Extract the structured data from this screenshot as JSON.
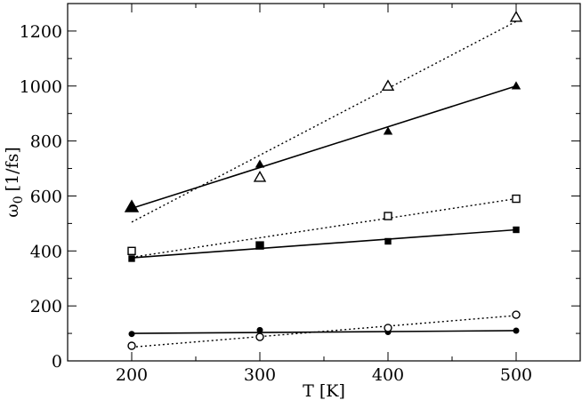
{
  "chart_data": {
    "type": "scatter",
    "title": "",
    "xlabel": "T [K]",
    "ylabel": "ω",
    "ylabel_sub": "0",
    "ylabel_unit": "[1/fs]",
    "xlim": [
      150,
      550
    ],
    "ylim": [
      0,
      1300
    ],
    "xticks": [
      200,
      300,
      400,
      500
    ],
    "yticks": [
      0,
      200,
      400,
      600,
      800,
      1000,
      1200
    ],
    "grid": false,
    "legend": "none",
    "series": [
      {
        "marker": "triangle",
        "filled": true,
        "line": "solid",
        "x": [
          200,
          300,
          400,
          500
        ],
        "y": [
          560,
          715,
          835,
          1000
        ],
        "fit": {
          "x": [
            200,
            500
          ],
          "y": [
            555,
            1000
          ]
        }
      },
      {
        "marker": "triangle",
        "filled": false,
        "line": "dotted",
        "x": [
          300,
          400,
          500
        ],
        "y": [
          668,
          1000,
          1250
        ],
        "fit": {
          "x": [
            200,
            500
          ],
          "y": [
            505,
            1235
          ]
        }
      },
      {
        "marker": "square",
        "filled": true,
        "line": "solid",
        "x": [
          200,
          300,
          400,
          500
        ],
        "y": [
          372,
          420,
          435,
          477
        ],
        "fit": {
          "x": [
            200,
            500
          ],
          "y": [
            375,
            477
          ]
        }
      },
      {
        "marker": "square",
        "filled": false,
        "line": "dotted",
        "x": [
          200,
          400,
          500
        ],
        "y": [
          400,
          527,
          590
        ],
        "fit": {
          "x": [
            200,
            500
          ],
          "y": [
            377,
            590
          ]
        }
      },
      {
        "marker": "circle",
        "filled": true,
        "line": "solid",
        "x": [
          200,
          300,
          400,
          500
        ],
        "y": [
          98,
          112,
          105,
          110
        ],
        "fit": {
          "x": [
            200,
            500
          ],
          "y": [
            100,
            110
          ]
        }
      },
      {
        "marker": "circle",
        "filled": false,
        "line": "dotted",
        "x": [
          200,
          300,
          400,
          500
        ],
        "y": [
          55,
          87,
          120,
          168
        ],
        "fit": {
          "x": [
            200,
            500
          ],
          "y": [
            50,
            165
          ]
        }
      }
    ]
  }
}
